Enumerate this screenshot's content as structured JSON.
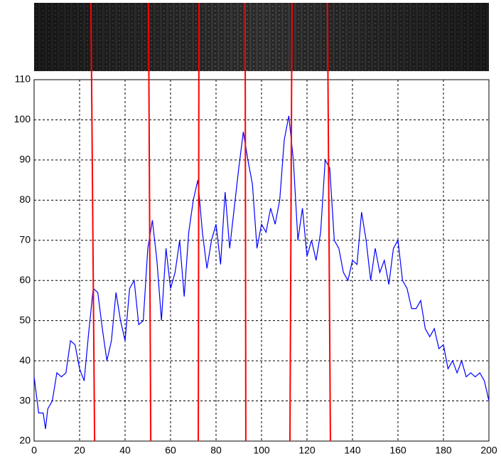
{
  "chart_data": {
    "type": "line",
    "x": [
      0,
      2,
      4,
      5,
      6,
      8,
      10,
      12,
      14,
      16,
      18,
      20,
      22,
      24,
      26,
      28,
      30,
      32,
      34,
      36,
      38,
      40,
      42,
      44,
      46,
      48,
      50,
      52,
      54,
      56,
      58,
      60,
      62,
      64,
      66,
      68,
      70,
      72,
      74,
      76,
      78,
      80,
      82,
      84,
      86,
      88,
      90,
      92,
      94,
      96,
      98,
      100,
      102,
      104,
      106,
      108,
      110,
      112,
      114,
      116,
      118,
      120,
      122,
      124,
      126,
      128,
      130,
      132,
      134,
      136,
      138,
      140,
      142,
      144,
      146,
      148,
      150,
      152,
      154,
      156,
      158,
      160,
      162,
      164,
      166,
      168,
      170,
      172,
      174,
      176,
      178,
      180,
      182,
      184,
      186,
      188,
      190,
      192,
      194,
      196,
      198,
      200
    ],
    "series": [
      {
        "color": "#0000ff",
        "values": [
          36,
          27,
          27,
          23,
          28,
          30,
          37,
          36,
          37,
          45,
          44,
          38,
          35,
          47,
          58,
          57,
          48,
          40,
          45,
          57,
          50,
          45,
          58,
          60,
          49,
          50,
          68,
          75,
          65,
          50,
          68,
          58,
          62,
          70,
          56,
          72,
          80,
          85,
          72,
          63,
          70,
          74,
          64,
          82,
          68,
          78,
          88,
          97,
          90,
          84,
          68,
          74,
          72,
          78,
          74,
          80,
          95,
          101,
          90,
          70,
          78,
          66,
          70,
          65,
          72,
          90,
          88,
          70,
          68,
          62,
          60,
          65,
          64,
          77,
          70,
          60,
          68,
          62,
          65,
          59,
          68,
          70,
          60,
          58,
          53,
          53,
          55,
          48,
          46,
          48,
          43,
          44,
          38,
          40,
          37,
          40,
          36,
          37,
          36,
          37,
          35,
          30
        ]
      }
    ],
    "red_lines": {
      "color": "#ff0000",
      "x_top": [
        25,
        50.3,
        72.5,
        92.8,
        113.4,
        129
      ],
      "x_bottom": [
        26.6,
        51.3,
        72.2,
        93.1,
        112.5,
        130.3
      ]
    },
    "xlim": [
      0,
      200
    ],
    "xticks": [
      0,
      20,
      40,
      60,
      80,
      100,
      120,
      140,
      160,
      180,
      200
    ],
    "ylim": [
      20,
      110
    ],
    "yticks": [
      20,
      30,
      40,
      50,
      60,
      70,
      80,
      90,
      100,
      110
    ],
    "grid": true
  }
}
